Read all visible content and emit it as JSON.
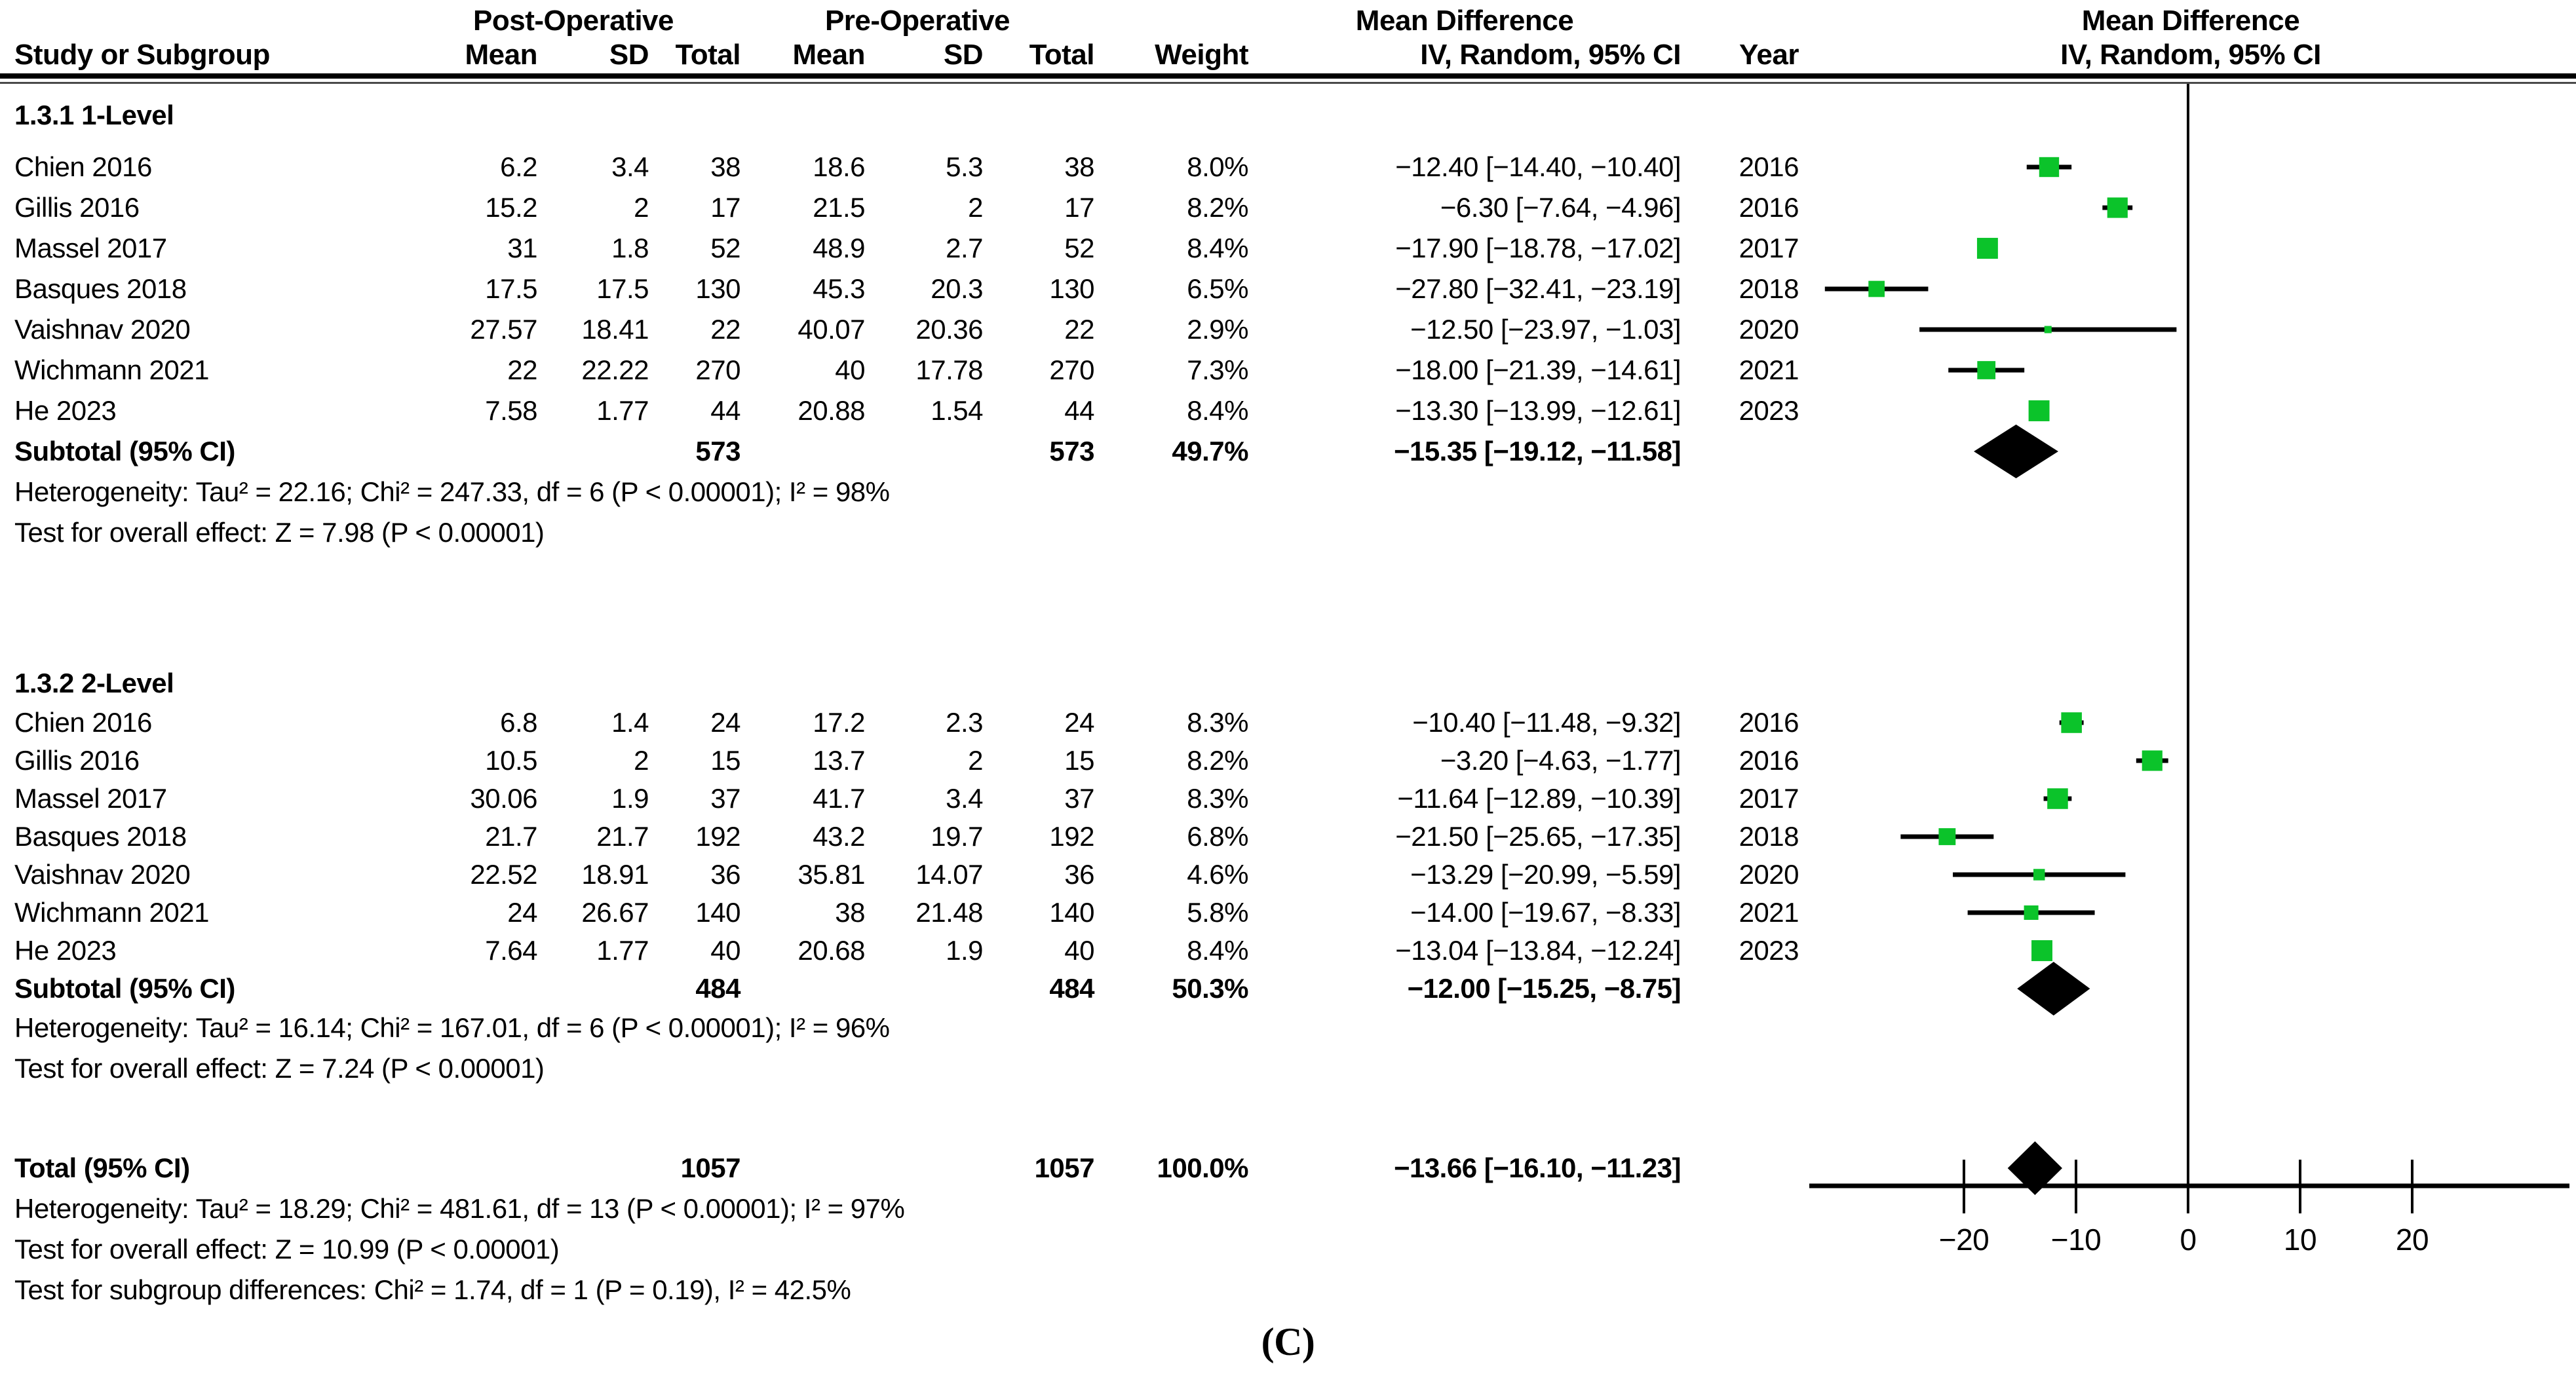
{
  "header": {
    "group_post": "Post-Operative",
    "group_pre": "Pre-Operative",
    "group_md_left": "Mean Difference",
    "group_md_right": "Mean Difference",
    "col_study": "Study or Subgroup",
    "col_mean": "Mean",
    "col_sd": "SD",
    "col_total": "Total",
    "col_mean2": "Mean",
    "col_sd2": "SD",
    "col_total2": "Total",
    "col_weight": "Weight",
    "col_ci": "IV, Random, 95% CI",
    "col_year": "Year",
    "col_ci_right": "IV, Random, 95% CI"
  },
  "caption": "(C)",
  "colors": {
    "marker_green": "#0bc32a",
    "line_black": "#000000"
  },
  "chart_data": {
    "type": "forest",
    "effect_measure": "Mean Difference, IV, Random, 95% CI",
    "axis": {
      "tick_values": [
        -20,
        -10,
        0,
        10,
        20
      ],
      "tick_labels": [
        "−20",
        "−10",
        "0",
        "10",
        "20"
      ],
      "xlim": [
        -33.5,
        33.5
      ]
    },
    "subgroups": [
      {
        "label": "1.3.1 1-Level",
        "studies": [
          {
            "label": "Chien 2016",
            "post": [
              "6.2",
              "3.4",
              "38"
            ],
            "pre": [
              "18.6",
              "5.3",
              "38"
            ],
            "weight": "8.0%",
            "weight_pct": 8.0,
            "ci": "−12.40 [−14.40, −10.40]",
            "year": "2016",
            "values": [
              -12.4,
              -14.4,
              -10.4
            ]
          },
          {
            "label": "Gillis 2016",
            "post": [
              "15.2",
              "2",
              "17"
            ],
            "pre": [
              "21.5",
              "2",
              "17"
            ],
            "weight": "8.2%",
            "weight_pct": 8.2,
            "ci": "−6.30 [−7.64, −4.96]",
            "year": "2016",
            "values": [
              -6.3,
              -7.64,
              -4.96
            ]
          },
          {
            "label": "Massel 2017",
            "post": [
              "31",
              "1.8",
              "52"
            ],
            "pre": [
              "48.9",
              "2.7",
              "52"
            ],
            "weight": "8.4%",
            "weight_pct": 8.4,
            "ci": "−17.90 [−18.78, −17.02]",
            "year": "2017",
            "values": [
              -17.9,
              -18.78,
              -17.02
            ]
          },
          {
            "label": "Basques 2018",
            "post": [
              "17.5",
              "17.5",
              "130"
            ],
            "pre": [
              "45.3",
              "20.3",
              "130"
            ],
            "weight": "6.5%",
            "weight_pct": 6.5,
            "ci": "−27.80 [−32.41, −23.19]",
            "year": "2018",
            "values": [
              -27.8,
              -32.41,
              -23.19
            ]
          },
          {
            "label": "Vaishnav 2020",
            "post": [
              "27.57",
              "18.41",
              "22"
            ],
            "pre": [
              "40.07",
              "20.36",
              "22"
            ],
            "weight": "2.9%",
            "weight_pct": 2.9,
            "ci": "−12.50 [−23.97, −1.03]",
            "year": "2020",
            "values": [
              -12.5,
              -23.97,
              -1.03
            ]
          },
          {
            "label": "Wichmann 2021",
            "post": [
              "22",
              "22.22",
              "270"
            ],
            "pre": [
              "40",
              "17.78",
              "270"
            ],
            "weight": "7.3%",
            "weight_pct": 7.3,
            "ci": "−18.00 [−21.39, −14.61]",
            "year": "2021",
            "values": [
              -18.0,
              -21.39,
              -14.61
            ]
          },
          {
            "label": "He 2023",
            "post": [
              "7.58",
              "1.77",
              "44"
            ],
            "pre": [
              "20.88",
              "1.54",
              "44"
            ],
            "weight": "8.4%",
            "weight_pct": 8.4,
            "ci": "−13.30 [−13.99, −12.61]",
            "year": "2023",
            "values": [
              -13.3,
              -13.99,
              -12.61
            ]
          }
        ],
        "subtotal": {
          "label": "Subtotal (95% CI)",
          "total_post": "573",
          "total_pre": "573",
          "weight": "49.7%",
          "ci": "−15.35 [−19.12, −11.58]",
          "values": [
            -15.35,
            -19.12,
            -11.58
          ]
        },
        "heterogeneity": "Heterogeneity: Tau² = 22.16; Chi² = 247.33, df = 6 (P < 0.00001); I² = 98%",
        "overall_effect": "Test for overall effect: Z = 7.98 (P < 0.00001)"
      },
      {
        "label": "1.3.2 2-Level",
        "studies": [
          {
            "label": "Chien 2016",
            "post": [
              "6.8",
              "1.4",
              "24"
            ],
            "pre": [
              "17.2",
              "2.3",
              "24"
            ],
            "weight": "8.3%",
            "weight_pct": 8.3,
            "ci": "−10.40 [−11.48, −9.32]",
            "year": "2016",
            "values": [
              -10.4,
              -11.48,
              -9.32
            ]
          },
          {
            "label": "Gillis 2016",
            "post": [
              "10.5",
              "2",
              "15"
            ],
            "pre": [
              "13.7",
              "2",
              "15"
            ],
            "weight": "8.2%",
            "weight_pct": 8.2,
            "ci": "−3.20 [−4.63, −1.77]",
            "year": "2016",
            "values": [
              -3.2,
              -4.63,
              -1.77
            ]
          },
          {
            "label": "Massel 2017",
            "post": [
              "30.06",
              "1.9",
              "37"
            ],
            "pre": [
              "41.7",
              "3.4",
              "37"
            ],
            "weight": "8.3%",
            "weight_pct": 8.3,
            "ci": "−11.64 [−12.89, −10.39]",
            "year": "2017",
            "values": [
              -11.64,
              -12.89,
              -10.39
            ]
          },
          {
            "label": "Basques 2018",
            "post": [
              "21.7",
              "21.7",
              "192"
            ],
            "pre": [
              "43.2",
              "19.7",
              "192"
            ],
            "weight": "6.8%",
            "weight_pct": 6.8,
            "ci": "−21.50 [−25.65, −17.35]",
            "year": "2018",
            "values": [
              -21.5,
              -25.65,
              -17.35
            ]
          },
          {
            "label": "Vaishnav 2020",
            "post": [
              "22.52",
              "18.91",
              "36"
            ],
            "pre": [
              "35.81",
              "14.07",
              "36"
            ],
            "weight": "4.6%",
            "weight_pct": 4.6,
            "ci": "−13.29 [−20.99, −5.59]",
            "year": "2020",
            "values": [
              -13.29,
              -20.99,
              -5.59
            ]
          },
          {
            "label": "Wichmann 2021",
            "post": [
              "24",
              "26.67",
              "140"
            ],
            "pre": [
              "38",
              "21.48",
              "140"
            ],
            "weight": "5.8%",
            "weight_pct": 5.8,
            "ci": "−14.00 [−19.67, −8.33]",
            "year": "2021",
            "values": [
              -14.0,
              -19.67,
              -8.33
            ]
          },
          {
            "label": "He 2023",
            "post": [
              "7.64",
              "1.77",
              "40"
            ],
            "pre": [
              "20.68",
              "1.9",
              "40"
            ],
            "weight": "8.4%",
            "weight_pct": 8.4,
            "ci": "−13.04 [−13.84, −12.24]",
            "year": "2023",
            "values": [
              -13.04,
              -13.84,
              -12.24
            ]
          }
        ],
        "subtotal": {
          "label": "Subtotal (95% CI)",
          "total_post": "484",
          "total_pre": "484",
          "weight": "50.3%",
          "ci": "−12.00 [−15.25, −8.75]",
          "values": [
            -12.0,
            -15.25,
            -8.75
          ]
        },
        "heterogeneity": "Heterogeneity: Tau² = 16.14; Chi² = 167.01, df = 6 (P < 0.00001); I² = 96%",
        "overall_effect": "Test for overall effect: Z = 7.24 (P < 0.00001)"
      }
    ],
    "total": {
      "label": "Total (95% CI)",
      "total_post": "1057",
      "total_pre": "1057",
      "weight": "100.0%",
      "ci": "−13.66 [−16.10, −11.23]",
      "values": [
        -13.66,
        -16.1,
        -11.23
      ]
    },
    "total_heterogeneity": "Heterogeneity: Tau² = 18.29; Chi² = 481.61, df = 13 (P < 0.00001); I² = 97%",
    "total_overall_effect": "Test for overall effect: Z = 10.99 (P < 0.00001)",
    "subgroup_differences": "Test for subgroup differences: Chi² = 1.74, df = 1 (P = 0.19), I² = 42.5%"
  }
}
